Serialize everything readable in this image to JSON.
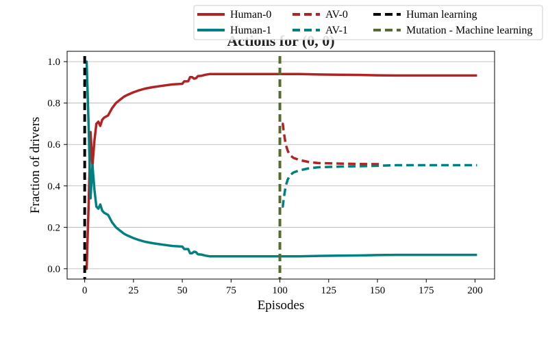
{
  "chart_data": {
    "type": "line",
    "title": "Actions for (0, 0)",
    "xlabel": "Episodes",
    "ylabel": "Fraction of drivers",
    "xlim": [
      -9,
      210
    ],
    "ylim": [
      -0.05,
      1.05
    ],
    "xticks": [
      0,
      25,
      50,
      75,
      100,
      125,
      150,
      175,
      200
    ],
    "yticks": [
      0.0,
      0.2,
      0.4,
      0.6,
      0.8,
      1.0
    ],
    "xtick_labels": [
      "0",
      "25",
      "50",
      "75",
      "100",
      "125",
      "150",
      "175",
      "200"
    ],
    "ytick_labels": [
      "0.0",
      "0.2",
      "0.4",
      "0.6",
      "0.8",
      "1.0"
    ],
    "grid": "y",
    "legend_placement": "top-right, above plot",
    "series": [
      {
        "name": "Human-0",
        "color": "#b22222",
        "style": "solid",
        "x": [
          0,
          0.5,
          1,
          2,
          3,
          4,
          5,
          6,
          7,
          8,
          9,
          10,
          12,
          14,
          16,
          18,
          20,
          22,
          25,
          28,
          31,
          35,
          40,
          45,
          50,
          51,
          52,
          53,
          54,
          55,
          56,
          57,
          58,
          60,
          62,
          64,
          70,
          80,
          90,
          100,
          110,
          120,
          130,
          140,
          150,
          160,
          170,
          180,
          190,
          201
        ],
        "y": [
          0.0,
          0.0,
          0.0,
          0.3,
          0.66,
          0.5,
          0.62,
          0.7,
          0.71,
          0.69,
          0.72,
          0.73,
          0.74,
          0.775,
          0.8,
          0.815,
          0.83,
          0.84,
          0.852,
          0.862,
          0.87,
          0.877,
          0.884,
          0.89,
          0.893,
          0.905,
          0.905,
          0.905,
          0.925,
          0.925,
          0.918,
          0.92,
          0.93,
          0.932,
          0.937,
          0.94,
          0.94,
          0.94,
          0.94,
          0.94,
          0.94,
          0.938,
          0.937,
          0.936,
          0.934,
          0.933,
          0.933,
          0.933,
          0.933,
          0.933
        ]
      },
      {
        "name": "Human-1",
        "color": "#008080",
        "style": "solid",
        "x": [
          0,
          0.5,
          1,
          2,
          3,
          4,
          5,
          6,
          7,
          8,
          9,
          10,
          12,
          14,
          16,
          18,
          20,
          22,
          25,
          28,
          31,
          35,
          40,
          45,
          50,
          51,
          52,
          53,
          54,
          55,
          56,
          57,
          58,
          60,
          62,
          64,
          70,
          80,
          90,
          100,
          110,
          120,
          130,
          140,
          150,
          160,
          170,
          180,
          190,
          201
        ],
        "y": [
          1.0,
          1.0,
          1.0,
          0.7,
          0.34,
          0.5,
          0.38,
          0.3,
          0.29,
          0.31,
          0.28,
          0.27,
          0.26,
          0.225,
          0.2,
          0.185,
          0.17,
          0.16,
          0.148,
          0.138,
          0.13,
          0.123,
          0.116,
          0.11,
          0.107,
          0.095,
          0.095,
          0.095,
          0.075,
          0.075,
          0.082,
          0.08,
          0.07,
          0.068,
          0.063,
          0.06,
          0.06,
          0.06,
          0.06,
          0.06,
          0.06,
          0.062,
          0.063,
          0.064,
          0.066,
          0.067,
          0.067,
          0.067,
          0.067,
          0.067
        ]
      },
      {
        "name": "AV-0",
        "color": "#b22222",
        "style": "dashed",
        "x": [
          101,
          101.5,
          102,
          103,
          104,
          105,
          107,
          110,
          115,
          120,
          130,
          140,
          152
        ],
        "y": [
          0.7,
          0.7,
          0.66,
          0.6,
          0.57,
          0.55,
          0.535,
          0.525,
          0.515,
          0.51,
          0.508,
          0.506,
          0.505
        ]
      },
      {
        "name": "AV-1",
        "color": "#008080",
        "style": "dashed",
        "x": [
          101,
          101.5,
          102,
          103,
          104,
          105,
          107,
          110,
          115,
          120,
          130,
          140,
          150,
          160,
          170,
          180,
          190,
          201
        ],
        "y": [
          0.3,
          0.3,
          0.34,
          0.4,
          0.43,
          0.45,
          0.465,
          0.475,
          0.485,
          0.49,
          0.493,
          0.495,
          0.497,
          0.5,
          0.5,
          0.5,
          0.5,
          0.5
        ]
      }
    ],
    "vlines": [
      {
        "name": "Human learning",
        "x": 0,
        "color": "#000000"
      },
      {
        "name": "Mutation - Machine learning",
        "x": 100,
        "color": "#556b2f"
      }
    ],
    "legend": [
      {
        "label": "Human-0",
        "color": "#b22222",
        "style": "solid"
      },
      {
        "label": "Human-1",
        "color": "#008080",
        "style": "solid"
      },
      {
        "label": "AV-0",
        "color": "#b22222",
        "style": "dashed"
      },
      {
        "label": "AV-1",
        "color": "#008080",
        "style": "dashed"
      },
      {
        "label": "Human learning",
        "color": "#000000",
        "style": "dashed"
      },
      {
        "label": "Mutation - Machine learning",
        "color": "#556b2f",
        "style": "dashed"
      }
    ]
  }
}
